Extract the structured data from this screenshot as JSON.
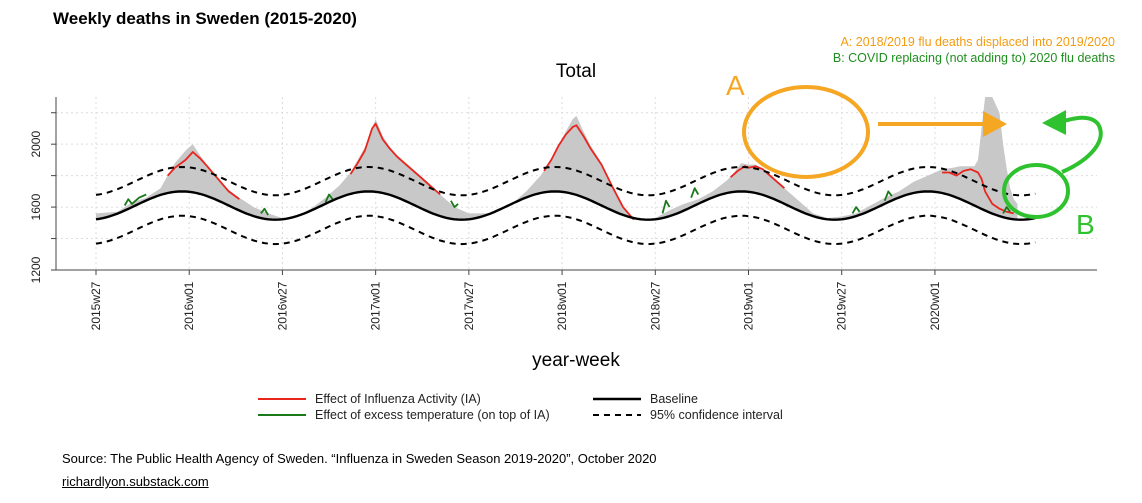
{
  "page": {
    "title": "Weekly deaths in Sweden (2015-2020)",
    "annotation_a": "A: 2018/2019 flu deaths displaced into 2019/2020",
    "annotation_b": "B: COVID replacing (not adding to) 2020 flu deaths",
    "marker_a": "A",
    "marker_b": "B",
    "source": "Source: The Public Health Agency of Sweden. “Influenza in Sweden Season 2019-2020”, October 2020",
    "site": "richardlyon.substack.com",
    "colors": {
      "annotation_a": "#f39c12",
      "annotation_b": "#1e8f1e",
      "influenza": "#e8261e",
      "temperature": "#1a7a1a",
      "baseline": "#000000",
      "observed_fill": "#c8c8c8"
    }
  },
  "chart_data": {
    "type": "area",
    "title": "Total",
    "xlabel": "year-week",
    "ylabel": "",
    "ylim": [
      1200,
      2300
    ],
    "xlim": [
      0,
      270
    ],
    "yticks": [
      1200,
      1600,
      2000
    ],
    "grid": true,
    "legend_position": "bottom",
    "x_ticks": [
      {
        "week": 0,
        "label": "2015w27"
      },
      {
        "week": 26,
        "label": "2016w01"
      },
      {
        "week": 52,
        "label": "2016w27"
      },
      {
        "week": 78,
        "label": "2017w01"
      },
      {
        "week": 104,
        "label": "2017w27"
      },
      {
        "week": 130,
        "label": "2018w01"
      },
      {
        "week": 156,
        "label": "2018w27"
      },
      {
        "week": 182,
        "label": "2019w01"
      },
      {
        "week": 208,
        "label": "2019w27"
      },
      {
        "week": 234,
        "label": "2020w01"
      }
    ],
    "legend": [
      {
        "label": "Effect of Influenza Activity (IA)",
        "style": "influenza"
      },
      {
        "label": "Effect of excess temperature (on top of IA)",
        "style": "temperature"
      },
      {
        "label": "Baseline",
        "style": "baseline"
      },
      {
        "label": "95% confidence interval",
        "style": "ci"
      }
    ],
    "baseline": {
      "mean": 1610,
      "amplitude": 90,
      "period_weeks": 52,
      "peak_week": 24,
      "ci_half_width": 155
    },
    "series": [
      {
        "name": "Observed weekly deaths",
        "style": "observed_fill",
        "points": [
          [
            0,
            1560
          ],
          [
            6,
            1570
          ],
          [
            10,
            1630
          ],
          [
            14,
            1660
          ],
          [
            18,
            1720
          ],
          [
            20,
            1800
          ],
          [
            22,
            1880
          ],
          [
            25,
            1960
          ],
          [
            27,
            2000
          ],
          [
            29,
            1930
          ],
          [
            31,
            1870
          ],
          [
            34,
            1780
          ],
          [
            37,
            1710
          ],
          [
            40,
            1660
          ],
          [
            44,
            1600
          ],
          [
            48,
            1560
          ],
          [
            52,
            1530
          ],
          [
            56,
            1540
          ],
          [
            60,
            1590
          ],
          [
            64,
            1660
          ],
          [
            68,
            1740
          ],
          [
            71,
            1820
          ],
          [
            73,
            1900
          ],
          [
            75,
            1980
          ],
          [
            77,
            2100
          ],
          [
            78,
            2160
          ],
          [
            80,
            2050
          ],
          [
            82,
            1980
          ],
          [
            84,
            1930
          ],
          [
            87,
            1870
          ],
          [
            90,
            1810
          ],
          [
            93,
            1750
          ],
          [
            96,
            1680
          ],
          [
            100,
            1600
          ],
          [
            104,
            1560
          ],
          [
            110,
            1560
          ],
          [
            115,
            1600
          ],
          [
            120,
            1700
          ],
          [
            124,
            1800
          ],
          [
            127,
            1900
          ],
          [
            129,
            1990
          ],
          [
            131,
            2080
          ],
          [
            133,
            2160
          ],
          [
            134,
            2180
          ],
          [
            136,
            2080
          ],
          [
            138,
            1990
          ],
          [
            141,
            1880
          ],
          [
            144,
            1740
          ],
          [
            147,
            1600
          ],
          [
            150,
            1520
          ],
          [
            156,
            1530
          ],
          [
            160,
            1580
          ],
          [
            164,
            1620
          ],
          [
            168,
            1650
          ],
          [
            172,
            1700
          ],
          [
            176,
            1770
          ],
          [
            178,
            1820
          ],
          [
            180,
            1880
          ],
          [
            182,
            1870
          ],
          [
            184,
            1870
          ],
          [
            186,
            1830
          ],
          [
            189,
            1780
          ],
          [
            192,
            1720
          ],
          [
            196,
            1640
          ],
          [
            200,
            1560
          ],
          [
            204,
            1530
          ],
          [
            208,
            1540
          ],
          [
            212,
            1560
          ],
          [
            216,
            1610
          ],
          [
            220,
            1660
          ],
          [
            224,
            1700
          ],
          [
            228,
            1760
          ],
          [
            232,
            1800
          ],
          [
            236,
            1840
          ],
          [
            239,
            1850
          ],
          [
            241,
            1860
          ],
          [
            243,
            1860
          ],
          [
            245,
            1860
          ],
          [
            246,
            1900
          ],
          [
            247,
            2100
          ],
          [
            248,
            2300
          ],
          [
            250,
            2300
          ],
          [
            252,
            2200
          ],
          [
            253,
            2000
          ],
          [
            254,
            1850
          ],
          [
            255,
            1720
          ],
          [
            256,
            1650
          ],
          [
            257,
            1620
          ]
        ]
      },
      {
        "name": "Effect of Influenza Activity (IA)",
        "style": "influenza",
        "points": [
          [
            20,
            1800
          ],
          [
            22,
            1850
          ],
          [
            25,
            1900
          ],
          [
            27,
            1950
          ],
          [
            29,
            1910
          ],
          [
            31,
            1860
          ],
          [
            34,
            1780
          ],
          [
            37,
            1700
          ],
          [
            40,
            1650
          ],
          [
            44,
            1600
          ],
          [
            71,
            1810
          ],
          [
            73,
            1880
          ],
          [
            75,
            1960
          ],
          [
            77,
            2100
          ],
          [
            78,
            2130
          ],
          [
            80,
            2030
          ],
          [
            82,
            1970
          ],
          [
            84,
            1920
          ],
          [
            87,
            1860
          ],
          [
            90,
            1800
          ],
          [
            93,
            1740
          ],
          [
            96,
            1680
          ],
          [
            125,
            1830
          ],
          [
            127,
            1900
          ],
          [
            129,
            1990
          ],
          [
            131,
            2060
          ],
          [
            133,
            2110
          ],
          [
            134,
            2120
          ],
          [
            136,
            2050
          ],
          [
            138,
            1970
          ],
          [
            141,
            1870
          ],
          [
            144,
            1730
          ],
          [
            147,
            1600
          ],
          [
            150,
            1520
          ],
          [
            177,
            1790
          ],
          [
            179,
            1830
          ],
          [
            181,
            1860
          ],
          [
            182,
            1850
          ],
          [
            184,
            1860
          ],
          [
            186,
            1840
          ],
          [
            189,
            1780
          ],
          [
            192,
            1720
          ],
          [
            196,
            1640
          ],
          [
            200,
            1560
          ],
          [
            236,
            1820
          ],
          [
            238,
            1820
          ],
          [
            240,
            1800
          ],
          [
            242,
            1830
          ],
          [
            244,
            1840
          ],
          [
            246,
            1820
          ],
          [
            247,
            1780
          ],
          [
            248,
            1700
          ],
          [
            250,
            1620
          ],
          [
            252,
            1590
          ],
          [
            254,
            1570
          ],
          [
            256,
            1560
          ]
        ]
      },
      {
        "name": "Effect of excess temperature (on top of IA)",
        "style": "temperature",
        "points": [
          [
            8,
            1610
          ],
          [
            9,
            1650
          ],
          [
            10,
            1620
          ],
          [
            12,
            1660
          ],
          [
            14,
            1680
          ],
          [
            46,
            1560
          ],
          [
            47,
            1590
          ],
          [
            48,
            1550
          ],
          [
            64,
            1630
          ],
          [
            65,
            1680
          ],
          [
            66,
            1650
          ],
          [
            99,
            1640
          ],
          [
            100,
            1600
          ],
          [
            101,
            1620
          ],
          [
            158,
            1560
          ],
          [
            159,
            1640
          ],
          [
            160,
            1600
          ],
          [
            166,
            1660
          ],
          [
            167,
            1720
          ],
          [
            168,
            1680
          ],
          [
            211,
            1560
          ],
          [
            212,
            1600
          ],
          [
            213,
            1570
          ],
          [
            220,
            1640
          ],
          [
            221,
            1700
          ],
          [
            222,
            1670
          ],
          [
            253,
            1560
          ],
          [
            254,
            1600
          ],
          [
            255,
            1570
          ]
        ]
      }
    ]
  }
}
